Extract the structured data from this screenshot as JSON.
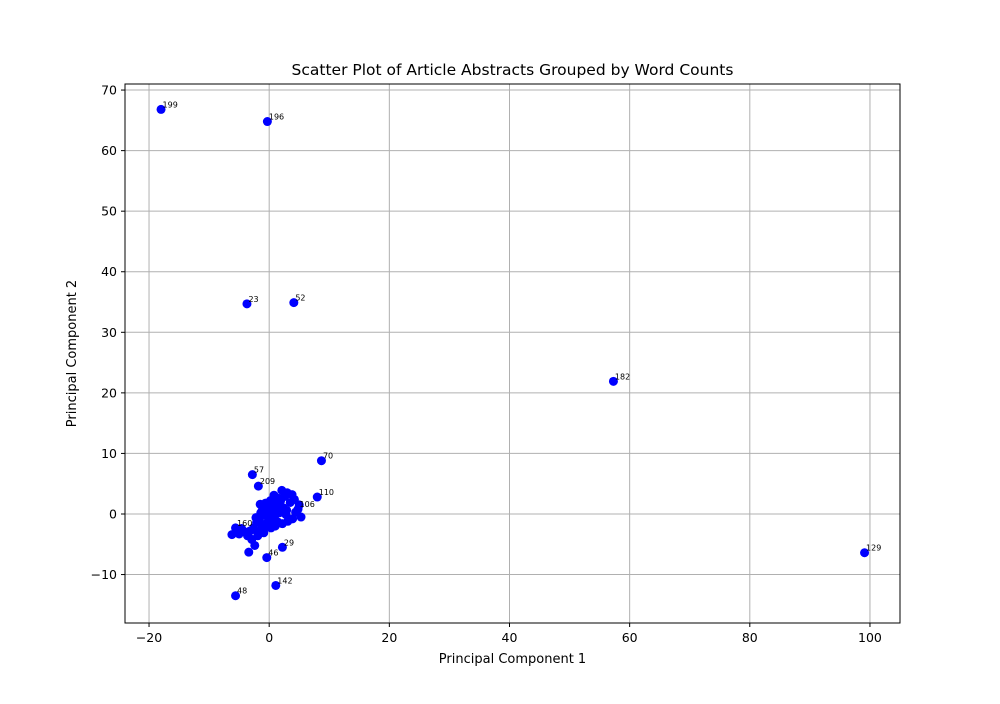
{
  "chart_data": {
    "type": "scatter",
    "title": "Scatter Plot of Article Abstracts Grouped by Word Counts",
    "xlabel": "Principal Component 1",
    "ylabel": "Principal Component 2",
    "xlim": [
      -24,
      105
    ],
    "ylim": [
      -18,
      71
    ],
    "xticks": [
      -20,
      0,
      20,
      40,
      60,
      80,
      100
    ],
    "yticks": [
      -10,
      0,
      10,
      20,
      30,
      40,
      50,
      60,
      70
    ],
    "grid": true,
    "marker_color": "#0000ff",
    "labeled_points": [
      {
        "label": "199",
        "x": -18.0,
        "y": 66.8
      },
      {
        "label": "196",
        "x": -0.3,
        "y": 64.8
      },
      {
        "label": "23",
        "x": -3.7,
        "y": 34.7
      },
      {
        "label": "52",
        "x": 4.1,
        "y": 34.9
      },
      {
        "label": "182",
        "x": 57.3,
        "y": 21.9
      },
      {
        "label": "70",
        "x": 8.7,
        "y": 8.8
      },
      {
        "label": "57",
        "x": -2.8,
        "y": 6.5
      },
      {
        "label": "209",
        "x": -1.8,
        "y": 4.6
      },
      {
        "label": "110",
        "x": 8.0,
        "y": 2.8
      },
      {
        "label": "106",
        "x": 4.8,
        "y": 0.8
      },
      {
        "label": "160",
        "x": -5.6,
        "y": -2.3
      },
      {
        "label": "29",
        "x": 2.2,
        "y": -5.5
      },
      {
        "label": "46",
        "x": -0.4,
        "y": -7.2
      },
      {
        "label": "129",
        "x": 99.1,
        "y": -6.4
      },
      {
        "label": "142",
        "x": 1.1,
        "y": -11.8
      },
      {
        "label": "48",
        "x": -5.6,
        "y": -13.5
      }
    ],
    "cluster_points": [
      {
        "x": 2.1,
        "y": 3.9
      },
      {
        "x": 3.0,
        "y": 3.5
      },
      {
        "x": 3.8,
        "y": 3.2
      },
      {
        "x": 2.6,
        "y": 2.9
      },
      {
        "x": 4.2,
        "y": 2.4
      },
      {
        "x": 3.5,
        "y": 1.9
      },
      {
        "x": 5.0,
        "y": 1.5
      },
      {
        "x": 4.4,
        "y": 0.3
      },
      {
        "x": 5.3,
        "y": -0.5
      },
      {
        "x": 3.9,
        "y": -0.8
      },
      {
        "x": 1.5,
        "y": 2.6
      },
      {
        "x": 0.8,
        "y": 3.1
      },
      {
        "x": 0.2,
        "y": 2.2
      },
      {
        "x": -0.6,
        "y": 1.8
      },
      {
        "x": -1.5,
        "y": 1.6
      },
      {
        "x": 1.2,
        "y": 1.4
      },
      {
        "x": 2.4,
        "y": 1.0
      },
      {
        "x": 0.5,
        "y": 0.8
      },
      {
        "x": -0.3,
        "y": 0.4
      },
      {
        "x": 1.7,
        "y": 0.2
      },
      {
        "x": 2.8,
        "y": -0.1
      },
      {
        "x": 0.9,
        "y": -0.4
      },
      {
        "x": -0.8,
        "y": -0.2
      },
      {
        "x": -1.6,
        "y": -0.7
      },
      {
        "x": 0.1,
        "y": -1.0
      },
      {
        "x": 1.4,
        "y": -1.3
      },
      {
        "x": 2.2,
        "y": -1.6
      },
      {
        "x": 3.1,
        "y": -1.2
      },
      {
        "x": -0.5,
        "y": -1.6
      },
      {
        "x": -1.2,
        "y": -1.9
      },
      {
        "x": -2.1,
        "y": -1.4
      },
      {
        "x": -2.6,
        "y": -2.3
      },
      {
        "x": -3.2,
        "y": -2.8
      },
      {
        "x": -4.2,
        "y": -2.9
      },
      {
        "x": -5.0,
        "y": -3.3
      },
      {
        "x": -6.2,
        "y": -3.4
      },
      {
        "x": -4.6,
        "y": -2.4
      },
      {
        "x": -3.6,
        "y": -3.6
      },
      {
        "x": -2.9,
        "y": -4.2
      },
      {
        "x": -2.4,
        "y": -5.2
      },
      {
        "x": -3.4,
        "y": -6.3
      },
      {
        "x": -1.9,
        "y": -3.6
      },
      {
        "x": -1.0,
        "y": -2.7
      },
      {
        "x": 0.3,
        "y": -2.3
      },
      {
        "x": 1.0,
        "y": -2.0
      },
      {
        "x": -0.2,
        "y": 1.0
      },
      {
        "x": 0.6,
        "y": 1.9
      },
      {
        "x": 1.9,
        "y": 2.2
      },
      {
        "x": -1.1,
        "y": 0.7
      },
      {
        "x": 0.0,
        "y": 0.0
      },
      {
        "x": -0.9,
        "y": -3.1
      },
      {
        "x": -2.2,
        "y": -0.6
      },
      {
        "x": -1.4,
        "y": 0.2
      },
      {
        "x": -2.0,
        "y": -2.9
      },
      {
        "x": 2.9,
        "y": 0.6
      }
    ]
  }
}
